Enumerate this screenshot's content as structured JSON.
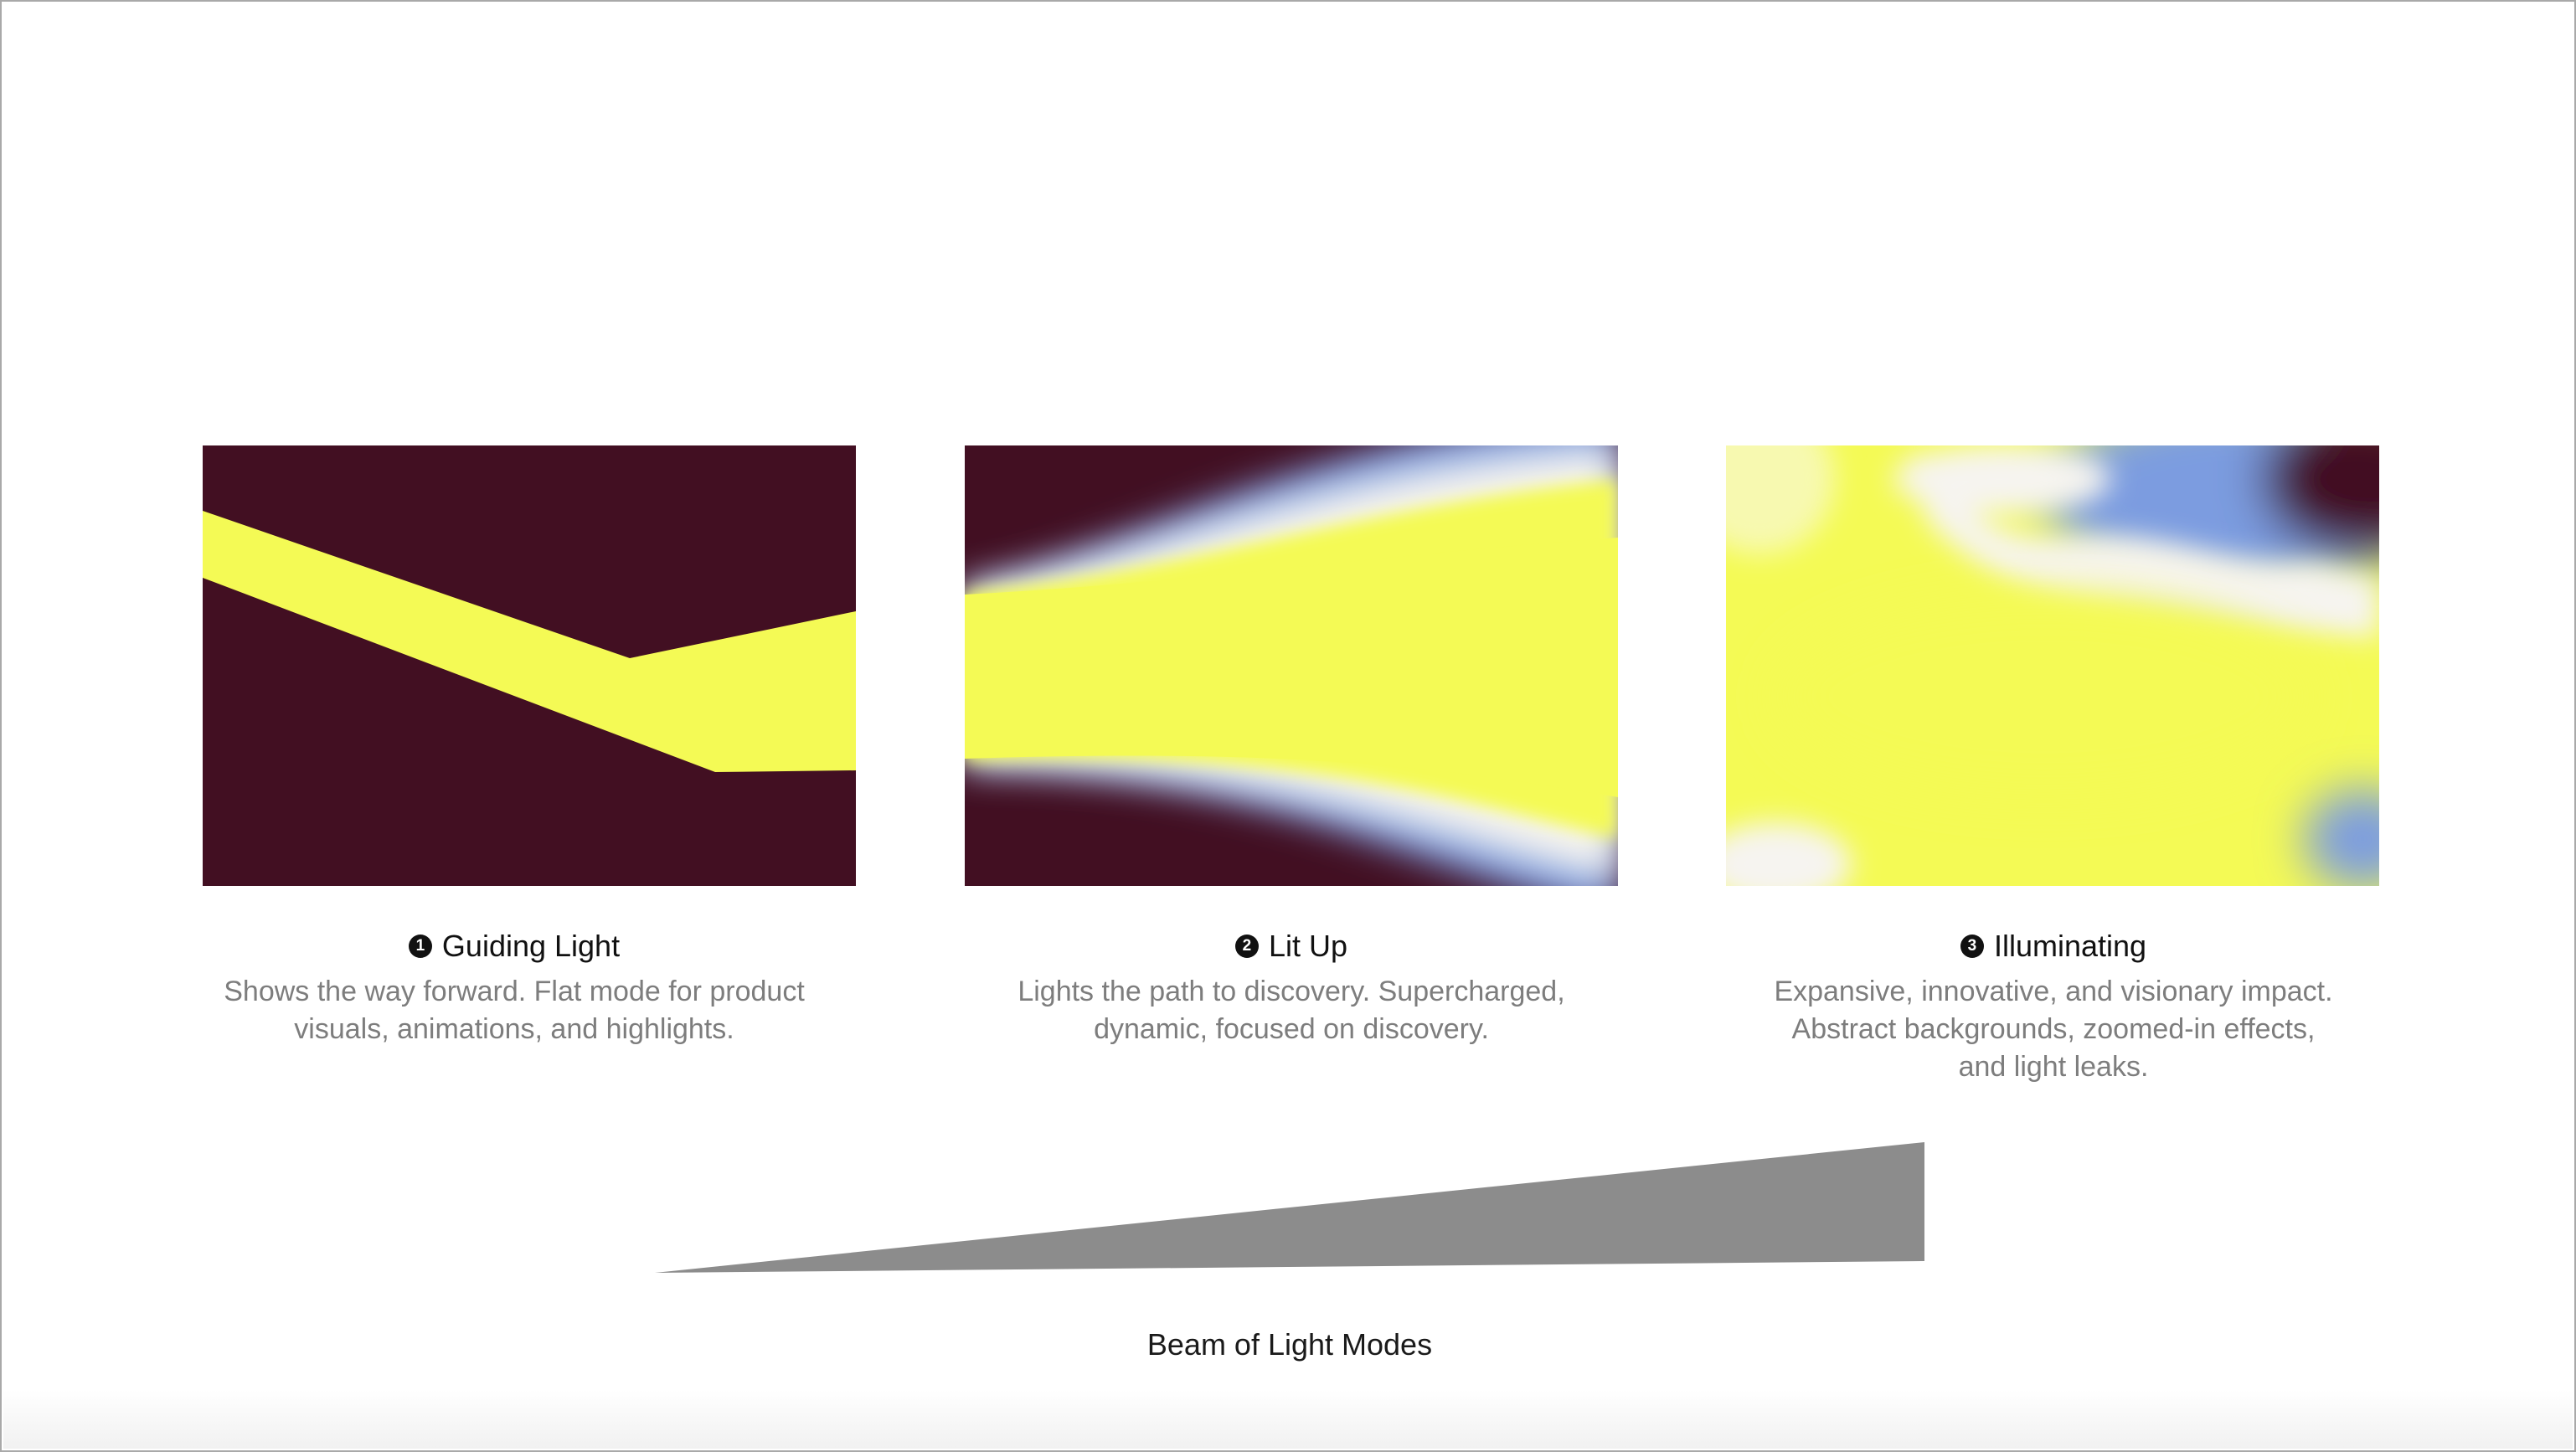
{
  "colors": {
    "dark": "#420F22",
    "yellow": "#F4FA55",
    "blue": "#7C9CE0",
    "white": "#F6F4F0",
    "wedge": "#8C8C8C"
  },
  "modes": [
    {
      "number": "1",
      "title": "Guiding Light",
      "description_lines": [
        "Shows the way forward. Flat mode for product",
        "visuals, animations, and highlights."
      ]
    },
    {
      "number": "2",
      "title": "Lit Up",
      "description_lines": [
        "Lights the path to discovery. Supercharged,",
        "dynamic, focused on discovery."
      ]
    },
    {
      "number": "3",
      "title": "Illuminating",
      "description_lines": [
        "Expansive, innovative, and visionary impact.",
        "Abstract backgrounds, zoomed-in effects,",
        "and light leaks."
      ]
    }
  ],
  "scale_label": "Beam of Light Modes"
}
